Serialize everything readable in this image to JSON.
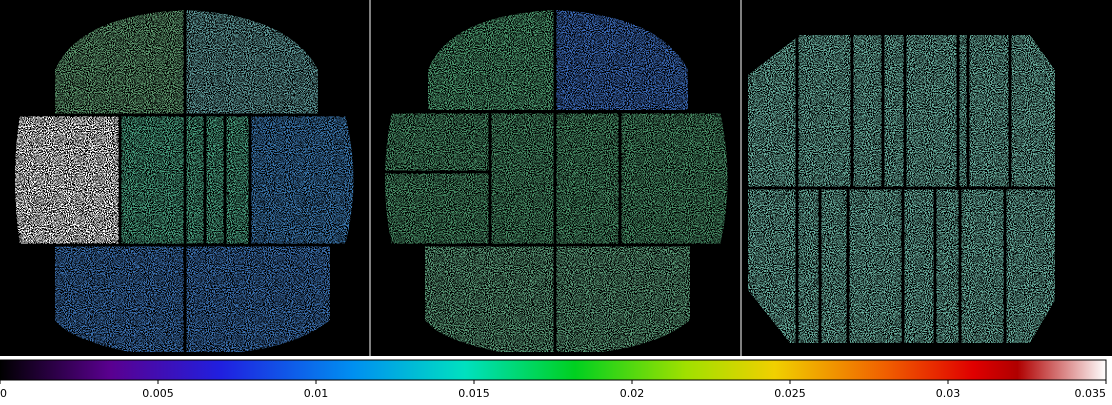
{
  "colorbar": {
    "lim": [
      0,
      0.035
    ],
    "ticks": [
      0,
      0.005,
      0.01,
      0.015,
      0.02,
      0.025,
      0.03,
      0.035
    ]
  }
}
